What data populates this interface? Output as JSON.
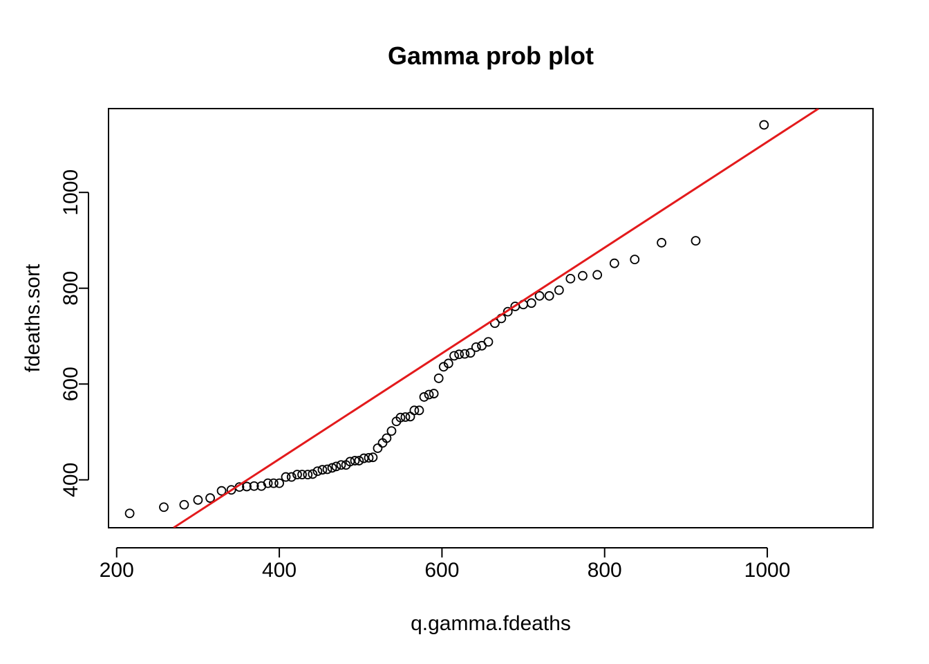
{
  "chart_data": {
    "type": "scatter",
    "title": "Gamma prob plot",
    "xlabel": "q.gamma.fdeaths",
    "ylabel": "fdeaths.sort",
    "xlim": [
      190,
      1130
    ],
    "ylim": [
      300,
      1175
    ],
    "xticks": [
      200,
      400,
      600,
      800,
      1000
    ],
    "yticks": [
      400,
      600,
      800,
      1000
    ],
    "grid": false,
    "point_color": "#000000",
    "line_color": "#e31a1c",
    "points": [
      {
        "x": 216,
        "y": 330
      },
      {
        "x": 258,
        "y": 343
      },
      {
        "x": 283,
        "y": 348
      },
      {
        "x": 300,
        "y": 358
      },
      {
        "x": 315,
        "y": 362
      },
      {
        "x": 329,
        "y": 377
      },
      {
        "x": 341,
        "y": 379
      },
      {
        "x": 351,
        "y": 385
      },
      {
        "x": 360,
        "y": 386
      },
      {
        "x": 369,
        "y": 387
      },
      {
        "x": 378,
        "y": 387
      },
      {
        "x": 386,
        "y": 393
      },
      {
        "x": 393,
        "y": 393
      },
      {
        "x": 400,
        "y": 393
      },
      {
        "x": 408,
        "y": 406
      },
      {
        "x": 415,
        "y": 406
      },
      {
        "x": 422,
        "y": 411
      },
      {
        "x": 428,
        "y": 411
      },
      {
        "x": 435,
        "y": 411
      },
      {
        "x": 441,
        "y": 412
      },
      {
        "x": 447,
        "y": 418
      },
      {
        "x": 453,
        "y": 421
      },
      {
        "x": 459,
        "y": 422
      },
      {
        "x": 465,
        "y": 425
      },
      {
        "x": 470,
        "y": 428
      },
      {
        "x": 476,
        "y": 431
      },
      {
        "x": 482,
        "y": 431
      },
      {
        "x": 487,
        "y": 438
      },
      {
        "x": 493,
        "y": 440
      },
      {
        "x": 498,
        "y": 440
      },
      {
        "x": 504,
        "y": 445
      },
      {
        "x": 510,
        "y": 446
      },
      {
        "x": 515,
        "y": 447
      },
      {
        "x": 521,
        "y": 466
      },
      {
        "x": 527,
        "y": 477
      },
      {
        "x": 532,
        "y": 487
      },
      {
        "x": 538,
        "y": 502
      },
      {
        "x": 544,
        "y": 522
      },
      {
        "x": 549,
        "y": 530
      },
      {
        "x": 555,
        "y": 531
      },
      {
        "x": 561,
        "y": 532
      },
      {
        "x": 566,
        "y": 545
      },
      {
        "x": 572,
        "y": 545
      },
      {
        "x": 578,
        "y": 573
      },
      {
        "x": 584,
        "y": 578
      },
      {
        "x": 590,
        "y": 580
      },
      {
        "x": 596,
        "y": 612
      },
      {
        "x": 602,
        "y": 636
      },
      {
        "x": 608,
        "y": 643
      },
      {
        "x": 615,
        "y": 659
      },
      {
        "x": 621,
        "y": 662
      },
      {
        "x": 628,
        "y": 663
      },
      {
        "x": 635,
        "y": 665
      },
      {
        "x": 642,
        "y": 677
      },
      {
        "x": 649,
        "y": 680
      },
      {
        "x": 657,
        "y": 688
      },
      {
        "x": 665,
        "y": 727
      },
      {
        "x": 673,
        "y": 737
      },
      {
        "x": 681,
        "y": 751
      },
      {
        "x": 690,
        "y": 762
      },
      {
        "x": 700,
        "y": 766
      },
      {
        "x": 710,
        "y": 769
      },
      {
        "x": 720,
        "y": 784
      },
      {
        "x": 732,
        "y": 784
      },
      {
        "x": 744,
        "y": 796
      },
      {
        "x": 758,
        "y": 820
      },
      {
        "x": 773,
        "y": 826
      },
      {
        "x": 791,
        "y": 828
      },
      {
        "x": 812,
        "y": 852
      },
      {
        "x": 837,
        "y": 860
      },
      {
        "x": 870,
        "y": 895
      },
      {
        "x": 912,
        "y": 899
      },
      {
        "x": 996,
        "y": 1141
      }
    ],
    "reference_line": [
      {
        "x": 270,
        "y": 300
      },
      {
        "x": 1063,
        "y": 1175
      }
    ]
  }
}
